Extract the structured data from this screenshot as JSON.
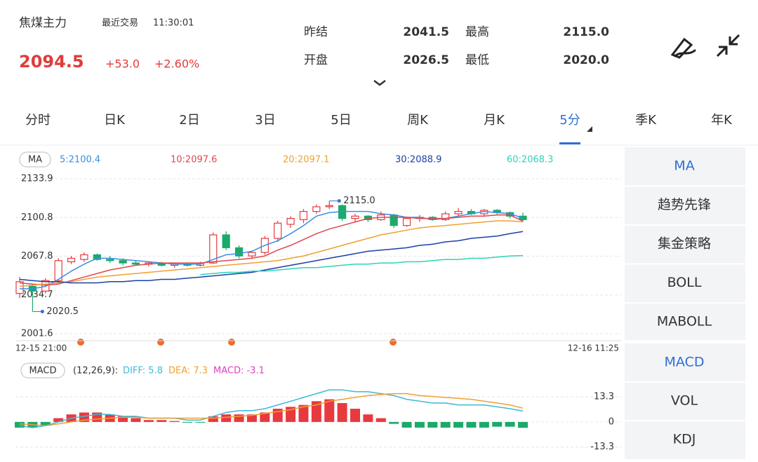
{
  "header": {
    "name": "焦煤主力",
    "trade_label": "最近交易",
    "trade_time": "11:30:01",
    "price": "2094.5",
    "change": "+53.0",
    "change_pct": "+2.60%",
    "stats": [
      {
        "label": "昨结",
        "value": "2041.5"
      },
      {
        "label": "最高",
        "value": "2115.0"
      },
      {
        "label": "开盘",
        "value": "2026.5"
      },
      {
        "label": "最低",
        "value": "2020.0"
      }
    ]
  },
  "tabs": {
    "items": [
      "分时",
      "日K",
      "2日",
      "3日",
      "5日",
      "周K",
      "月K",
      "5分",
      "季K",
      "年K"
    ],
    "active": 7
  },
  "main_chart": {
    "indicator": "MA",
    "up_color": "#e8393f",
    "down_color": "#1aaa6a",
    "ma_lines": [
      {
        "label": "5:2100.4",
        "color": "#3a8ee6",
        "values": [
          2040,
          2040,
          2042,
          2048,
          2055,
          2061,
          2066,
          2066,
          2065,
          2064,
          2063,
          2062,
          2061,
          2061,
          2061,
          2065,
          2069,
          2070,
          2072,
          2077,
          2081,
          2087,
          2094,
          2102,
          2105,
          2106,
          2106,
          2106,
          2104,
          2103,
          2101,
          2101,
          2099,
          2100,
          2102,
          2104,
          2106,
          2105,
          2104,
          2100.4
        ]
      },
      {
        "label": "10:2097.6",
        "color": "#e0464e",
        "values": [
          2045,
          2044,
          2043,
          2044,
          2047,
          2050,
          2053,
          2056,
          2058,
          2060,
          2061,
          2062,
          2062,
          2062,
          2062,
          2063,
          2064,
          2065,
          2066,
          2068,
          2073,
          2077,
          2082,
          2087,
          2091,
          2094,
          2097,
          2100,
          2101,
          2101,
          2101,
          2100,
          2100,
          2100,
          2101,
          2102,
          2102,
          2103,
          2103,
          2097.6
        ]
      },
      {
        "label": "20:2097.1",
        "color": "#f0a030",
        "values": [
          2042,
          2043,
          2044,
          2045,
          2046,
          2048,
          2050,
          2051,
          2052,
          2053,
          2054,
          2055,
          2056,
          2057,
          2058,
          2059,
          2060,
          2061,
          2062,
          2063,
          2064,
          2066,
          2068,
          2071,
          2074,
          2077,
          2080,
          2083,
          2086,
          2088,
          2090,
          2092,
          2093,
          2094,
          2095,
          2096,
          2097,
          2098,
          2098,
          2097.1
        ]
      },
      {
        "label": "30:2088.9",
        "color": "#1c3fa8",
        "values": [
          2048,
          2047,
          2046,
          2046,
          2045,
          2045,
          2045,
          2046,
          2046,
          2047,
          2047,
          2048,
          2048,
          2049,
          2050,
          2051,
          2052,
          2053,
          2054,
          2056,
          2058,
          2060,
          2062,
          2064,
          2066,
          2068,
          2070,
          2072,
          2073,
          2074,
          2075,
          2077,
          2078,
          2080,
          2081,
          2083,
          2084,
          2085,
          2087,
          2088.9
        ]
      },
      {
        "label": "60:2068.3",
        "color": "#2ed3b7",
        "values": [
          null,
          null,
          null,
          null,
          null,
          null,
          null,
          null,
          null,
          null,
          null,
          null,
          null,
          null,
          2052,
          2053,
          2054,
          2054,
          2055,
          2055,
          2056,
          2057,
          2058,
          2058,
          2059,
          2060,
          2061,
          2061,
          2062,
          2062,
          2063,
          2063,
          2064,
          2065,
          2065,
          2066,
          2066,
          2067,
          2068,
          2068.3
        ]
      }
    ],
    "candles": [
      [
        2036,
        2050,
        2032,
        2046
      ],
      [
        2042,
        2044,
        2020.5,
        2038
      ],
      [
        2038,
        2049,
        2036,
        2047
      ],
      [
        2047,
        2066,
        2045,
        2064
      ],
      [
        2063,
        2068,
        2061,
        2066
      ],
      [
        2065,
        2071,
        2063,
        2069
      ],
      [
        2069,
        2070,
        2064,
        2065
      ],
      [
        2065,
        2068,
        2062,
        2064
      ],
      [
        2064,
        2066,
        2060,
        2062
      ],
      [
        2062,
        2064,
        2060,
        2061
      ],
      [
        2061,
        2063,
        2059,
        2062
      ],
      [
        2062,
        2063,
        2059,
        2060
      ],
      [
        2060,
        2062,
        2058,
        2061
      ],
      [
        2061,
        2062,
        2059,
        2060
      ],
      [
        2060,
        2063,
        2059,
        2062
      ],
      [
        2062,
        2088,
        2061,
        2086
      ],
      [
        2086,
        2089,
        2073,
        2075
      ],
      [
        2075,
        2077,
        2066,
        2068
      ],
      [
        2068,
        2072,
        2066,
        2071
      ],
      [
        2071,
        2085,
        2069,
        2083
      ],
      [
        2083,
        2098,
        2080,
        2096
      ],
      [
        2095,
        2102,
        2092,
        2100
      ],
      [
        2099,
        2108,
        2096,
        2106
      ],
      [
        2106,
        2112,
        2104,
        2110
      ],
      [
        2110,
        2115,
        2108,
        2111
      ],
      [
        2111,
        2112,
        2098,
        2100
      ],
      [
        2100,
        2104,
        2097,
        2102
      ],
      [
        2102,
        2103,
        2097,
        2099
      ],
      [
        2099,
        2106,
        2098,
        2103
      ],
      [
        2103,
        2104,
        2092,
        2094
      ],
      [
        2094,
        2101,
        2093,
        2100
      ],
      [
        2100,
        2103,
        2097,
        2101
      ],
      [
        2101,
        2102,
        2098,
        2099
      ],
      [
        2099,
        2106,
        2098,
        2104
      ],
      [
        2104,
        2109,
        2102,
        2106
      ],
      [
        2106,
        2108,
        2103,
        2104
      ],
      [
        2104,
        2108,
        2102,
        2107
      ],
      [
        2107,
        2108,
        2103,
        2105
      ],
      [
        2105,
        2106,
        2100,
        2102
      ],
      [
        2102,
        2105,
        2097,
        2099
      ]
    ],
    "ylim": [
      2001.6,
      2133.9
    ],
    "yticks": [
      2133.9,
      2100.8,
      2067.8,
      2034.7,
      2001.6
    ],
    "grid": true,
    "max_label": "2115.0",
    "min_label": "2020.5",
    "start_time": "12-15 21:00",
    "end_time": "12-16 11:25"
  },
  "macd_chart": {
    "indicator": "MACD",
    "params": "(12,26,9):",
    "diff_label": "DIFF: 5.8",
    "dea_label": "DEA: 7.3",
    "macd_label": "MACD: -3.1",
    "diff_color": "#3fb8d8",
    "dea_color": "#f0a030",
    "macd_color": "#e040c0",
    "bars": [
      -3,
      -3,
      -2,
      2,
      4,
      5,
      5,
      4,
      3,
      2,
      1,
      1,
      0.5,
      -0.3,
      -0.3,
      3,
      4,
      4,
      4,
      5,
      7,
      8,
      9,
      11,
      12,
      10,
      7,
      4,
      2,
      -1,
      -3,
      -3,
      -3,
      -3,
      -3,
      -3,
      -3,
      -2.5,
      -2.5,
      -3.1
    ],
    "diff": [
      -2,
      -3,
      -2,
      0,
      2,
      3,
      4,
      4,
      3,
      3,
      2,
      2,
      2,
      1,
      1,
      3,
      5,
      6,
      6,
      7,
      9,
      11,
      13,
      15,
      17,
      17,
      16,
      16,
      15,
      14,
      12,
      11,
      10,
      10,
      9,
      9,
      9,
      8,
      7,
      5.8
    ],
    "dea": [
      -1,
      -1.5,
      -2,
      -1,
      0,
      1,
      1.5,
      2,
      2.5,
      2.5,
      2,
      2,
      2,
      2,
      2,
      2,
      2.5,
      3,
      3.5,
      4.5,
      5.5,
      6.5,
      8,
      9,
      11,
      12,
      13,
      14,
      14.5,
      15,
      15,
      14,
      13.5,
      13,
      12.5,
      12,
      11,
      10,
      9,
      7.3
    ],
    "ylim": [
      -16,
      20
    ],
    "yticks": [
      13.3,
      0,
      -13.3
    ]
  },
  "side_menu": {
    "main": [
      "MA",
      "趋势先锋",
      "集金策略",
      "BOLL",
      "MABOLL"
    ],
    "main_active": 0,
    "sub": [
      "MACD",
      "VOL",
      "KDJ"
    ],
    "sub_active": 0,
    "active_color": "#2f6fd6"
  }
}
